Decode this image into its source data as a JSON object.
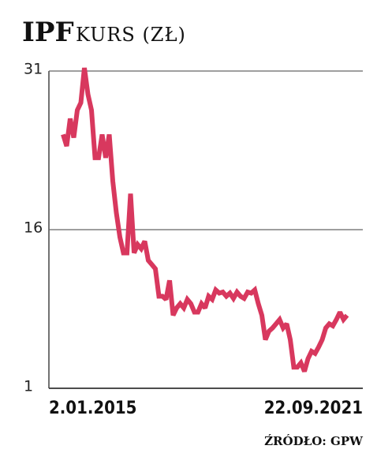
{
  "chart_data": {
    "type": "line",
    "title": "IPF",
    "subtitle": "KURS (ZŁ)",
    "source": "ŹRÓDŁO: GPW",
    "categories": [
      "2.01.2015",
      null,
      null,
      null,
      null,
      null,
      null,
      null,
      null,
      null,
      null,
      null,
      null,
      null,
      null,
      null,
      null,
      null,
      null,
      null,
      null,
      null,
      null,
      null,
      null,
      null,
      null,
      null,
      null,
      null,
      null,
      null,
      null,
      null,
      null,
      null,
      null,
      null,
      null,
      null,
      null,
      null,
      null,
      null,
      null,
      null,
      null,
      null,
      null,
      null,
      null,
      null,
      null,
      null,
      null,
      null,
      null,
      null,
      null,
      null,
      null,
      null,
      null,
      null,
      null,
      null,
      null,
      null,
      null,
      null,
      null,
      null,
      null,
      null,
      null,
      null,
      null,
      null,
      null,
      null,
      "22.09.2021"
    ],
    "values": [
      25.0,
      23.9,
      26.5,
      24.7,
      27.3,
      28.0,
      31.3,
      28.8,
      27.3,
      22.8,
      22.8,
      25.0,
      22.8,
      25.0,
      20.6,
      17.6,
      15.3,
      13.8,
      13.8,
      19.4,
      13.8,
      14.6,
      14.2,
      14.9,
      13.1,
      12.7,
      12.3,
      9.7,
      9.7,
      9.4,
      11.2,
      7.9,
      8.6,
      9.0,
      8.6,
      9.4,
      9.0,
      8.2,
      8.2,
      9.0,
      8.6,
      9.7,
      9.4,
      10.3,
      10.0,
      10.1,
      9.7,
      10.0,
      9.5,
      10.1,
      9.7,
      9.5,
      10.1,
      10.0,
      10.3,
      9.0,
      7.9,
      5.6,
      6.4,
      6.7,
      7.1,
      7.5,
      6.7,
      7.1,
      5.6,
      3.0,
      3.0,
      3.4,
      2.6,
      3.8,
      4.5,
      4.3,
      4.9,
      5.6,
      6.7,
      7.1,
      6.9,
      7.5,
      8.2,
      7.5,
      7.9
    ],
    "color": "#d8385e",
    "ylim": [
      1,
      31
    ],
    "yticks": [
      1,
      16,
      31
    ],
    "grid": true
  }
}
